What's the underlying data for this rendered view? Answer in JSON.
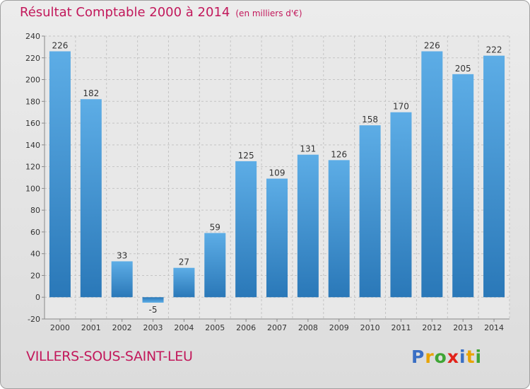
{
  "header": {
    "title": "Résultat Comptable 2000 à 2014",
    "subtitle": "(en milliers d'€)"
  },
  "footer": {
    "town": "VILLERS-SOUS-SAINT-LEU",
    "logo_text": "Proxiti"
  },
  "colors": {
    "accent": "#c2185b",
    "bar_top": "#5dade6",
    "bar_bottom": "#2a78b8"
  },
  "chart_data": {
    "type": "bar",
    "title": "Résultat Comptable 2000 à 2014",
    "subtitle": "(en milliers d'€)",
    "categories": [
      "2000",
      "2001",
      "2002",
      "2003",
      "2004",
      "2005",
      "2006",
      "2007",
      "2008",
      "2009",
      "2010",
      "2011",
      "2012",
      "2013",
      "2014"
    ],
    "values": [
      226,
      182,
      33,
      -5,
      27,
      59,
      125,
      109,
      131,
      126,
      158,
      170,
      226,
      205,
      222
    ],
    "ylim": [
      -20,
      240
    ],
    "yticks": [
      -20,
      0,
      20,
      40,
      60,
      80,
      100,
      120,
      140,
      160,
      180,
      200,
      220,
      240
    ],
    "grid": true,
    "legend": "none",
    "data_labels": true
  }
}
